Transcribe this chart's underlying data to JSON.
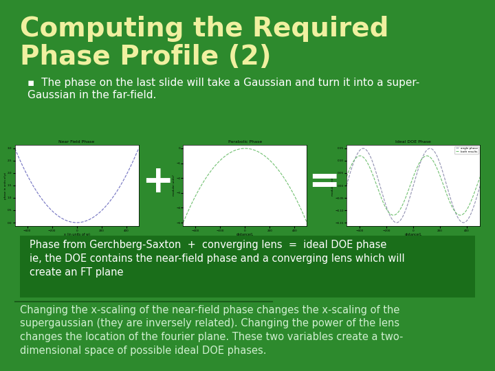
{
  "bg_color": "#2d8a2d",
  "title": "Computing the Required\nPhase Profile (2)",
  "title_color": "#f0f0a0",
  "title_fontsize": 28,
  "title_weight": "bold",
  "bullet_text": "The phase on the last slide will take a Gaussian and turn it into a super-\nGaussian in the far-field.",
  "bullet_color": "#ffffff",
  "bullet_fontsize": 11,
  "separator_color": "#1a5c1a",
  "plot1_title": "Near Field Phase",
  "plot2_title": "Parabolic Phase",
  "plot3_title": "Ideal DOE Phase",
  "plot_bg": "#ffffff",
  "plot_line_color1": "#7070c0",
  "plot_line_color2": "#70c070",
  "plot_line_color3a": "#9090b0",
  "plot_line_color3b": "#70c070",
  "xlabel1": "x (in units of w)",
  "xlabel2": "distance/L",
  "xlabel3": "distance/L",
  "ylabel1": "phase in units of pi",
  "ylabel2": "modular units?",
  "ylabel3": "modular units?",
  "plus_color": "#ffffff",
  "equals_color": "#ffffff",
  "operator_fontsize": 40,
  "footer_bg": "#1a6e1a",
  "footer_text1": "Phase from Gerchberg-Saxton  +  converging lens  =  ideal DOE phase\nie, the DOE contains the near-field phase and a converging lens which will\ncreate an FT plane",
  "footer_text2": "Changing the x-scaling of the near-field phase changes the x-scaling of the\nsupergaussian (they are inversely related). Changing the power of the lens\nchanges the location of the fourier plane. These two variables create a two-\ndimensional space of possible ideal DOE phases.",
  "footer_color1": "#ffffff",
  "footer_color2": "#d0f0d0",
  "footer_fontsize": 10.5
}
